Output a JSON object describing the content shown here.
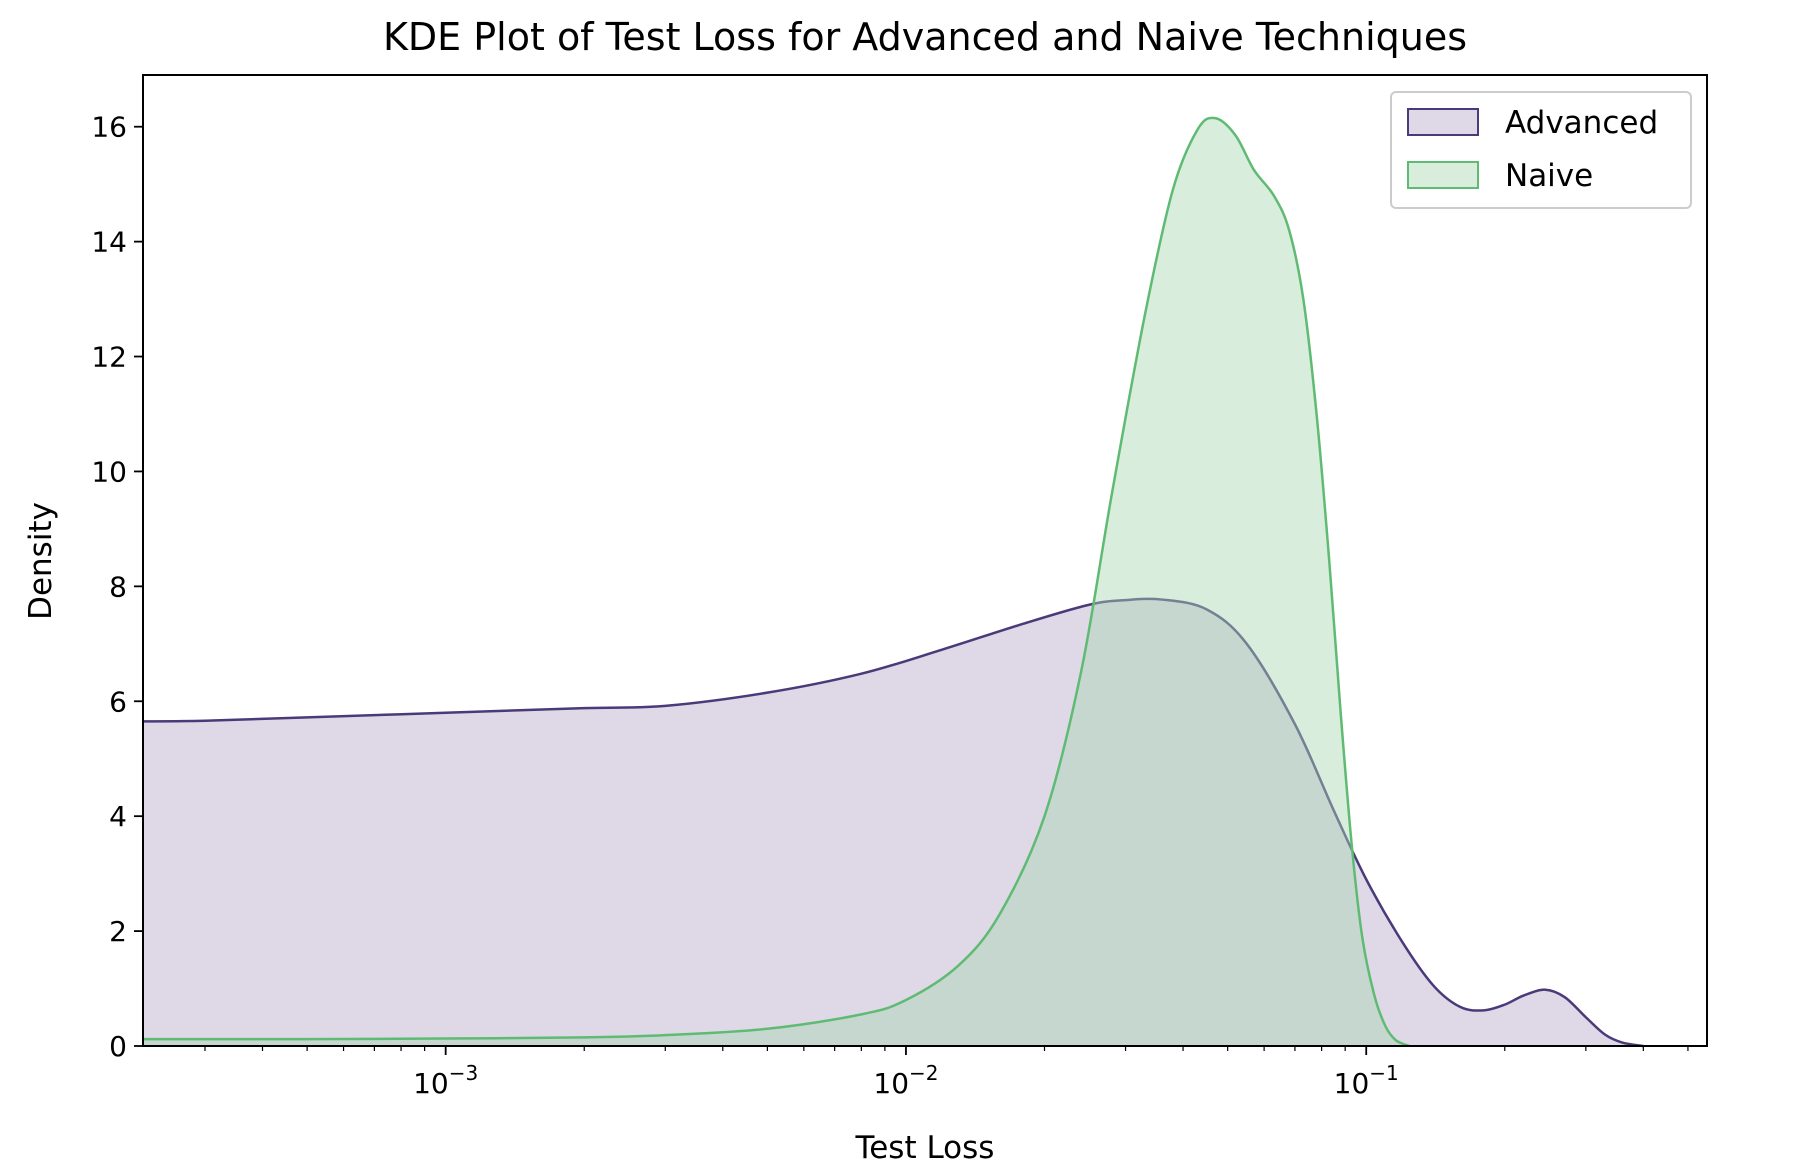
{
  "chart_data": {
    "type": "area",
    "title": "KDE Plot of Test Loss for Advanced and Naive Techniques",
    "xlabel": "Test Loss",
    "ylabel": "Density",
    "xscale": "log",
    "xlim": [
      0.00022,
      0.55
    ],
    "ylim": [
      0,
      16.9
    ],
    "x_major_ticks": [
      {
        "value": 0.001,
        "base": "10",
        "exp": "−3"
      },
      {
        "value": 0.01,
        "base": "10",
        "exp": "−2"
      },
      {
        "value": 0.1,
        "base": "10",
        "exp": "−1"
      }
    ],
    "y_ticks": [
      {
        "value": 0,
        "label": "0"
      },
      {
        "value": 2,
        "label": "2"
      },
      {
        "value": 4,
        "label": "4"
      },
      {
        "value": 6,
        "label": "6"
      },
      {
        "value": 8,
        "label": "8"
      },
      {
        "value": 10,
        "label": "10"
      },
      {
        "value": 12,
        "label": "12"
      },
      {
        "value": 14,
        "label": "14"
      },
      {
        "value": 16,
        "label": "16"
      }
    ],
    "legend_position": "top-right",
    "grid": false,
    "series": [
      {
        "name": "Advanced",
        "line_color": "#4a3a7a",
        "fill_color": "#b9a9c9",
        "points": [
          [
            0.00022,
            5.65
          ],
          [
            0.0003,
            5.66
          ],
          [
            0.0005,
            5.72
          ],
          [
            0.001,
            5.8
          ],
          [
            0.002,
            5.88
          ],
          [
            0.003,
            5.92
          ],
          [
            0.005,
            6.15
          ],
          [
            0.008,
            6.48
          ],
          [
            0.012,
            6.9
          ],
          [
            0.018,
            7.35
          ],
          [
            0.025,
            7.68
          ],
          [
            0.03,
            7.76
          ],
          [
            0.036,
            7.77
          ],
          [
            0.045,
            7.6
          ],
          [
            0.055,
            7.0
          ],
          [
            0.07,
            5.6
          ],
          [
            0.085,
            4.1
          ],
          [
            0.1,
            2.9
          ],
          [
            0.12,
            1.8
          ],
          [
            0.14,
            1.05
          ],
          [
            0.16,
            0.68
          ],
          [
            0.18,
            0.62
          ],
          [
            0.2,
            0.72
          ],
          [
            0.22,
            0.88
          ],
          [
            0.245,
            0.98
          ],
          [
            0.27,
            0.85
          ],
          [
            0.3,
            0.5
          ],
          [
            0.33,
            0.2
          ],
          [
            0.36,
            0.06
          ],
          [
            0.4,
            0.0
          ]
        ]
      },
      {
        "name": "Naive",
        "line_color": "#5fbb73",
        "fill_color": "#a8d8b1",
        "points": [
          [
            0.00022,
            0.12
          ],
          [
            0.0005,
            0.12
          ],
          [
            0.001,
            0.13
          ],
          [
            0.002,
            0.15
          ],
          [
            0.003,
            0.19
          ],
          [
            0.005,
            0.3
          ],
          [
            0.008,
            0.55
          ],
          [
            0.01,
            0.8
          ],
          [
            0.013,
            1.4
          ],
          [
            0.016,
            2.3
          ],
          [
            0.02,
            4.0
          ],
          [
            0.024,
            6.5
          ],
          [
            0.028,
            9.6
          ],
          [
            0.033,
            12.7
          ],
          [
            0.038,
            14.9
          ],
          [
            0.043,
            15.95
          ],
          [
            0.047,
            16.15
          ],
          [
            0.052,
            15.85
          ],
          [
            0.057,
            15.25
          ],
          [
            0.063,
            14.8
          ],
          [
            0.068,
            14.2
          ],
          [
            0.073,
            13.0
          ],
          [
            0.078,
            11.0
          ],
          [
            0.083,
            8.5
          ],
          [
            0.088,
            5.8
          ],
          [
            0.093,
            3.5
          ],
          [
            0.098,
            1.9
          ],
          [
            0.104,
            0.9
          ],
          [
            0.11,
            0.35
          ],
          [
            0.116,
            0.1
          ],
          [
            0.124,
            0.0
          ]
        ]
      }
    ]
  }
}
